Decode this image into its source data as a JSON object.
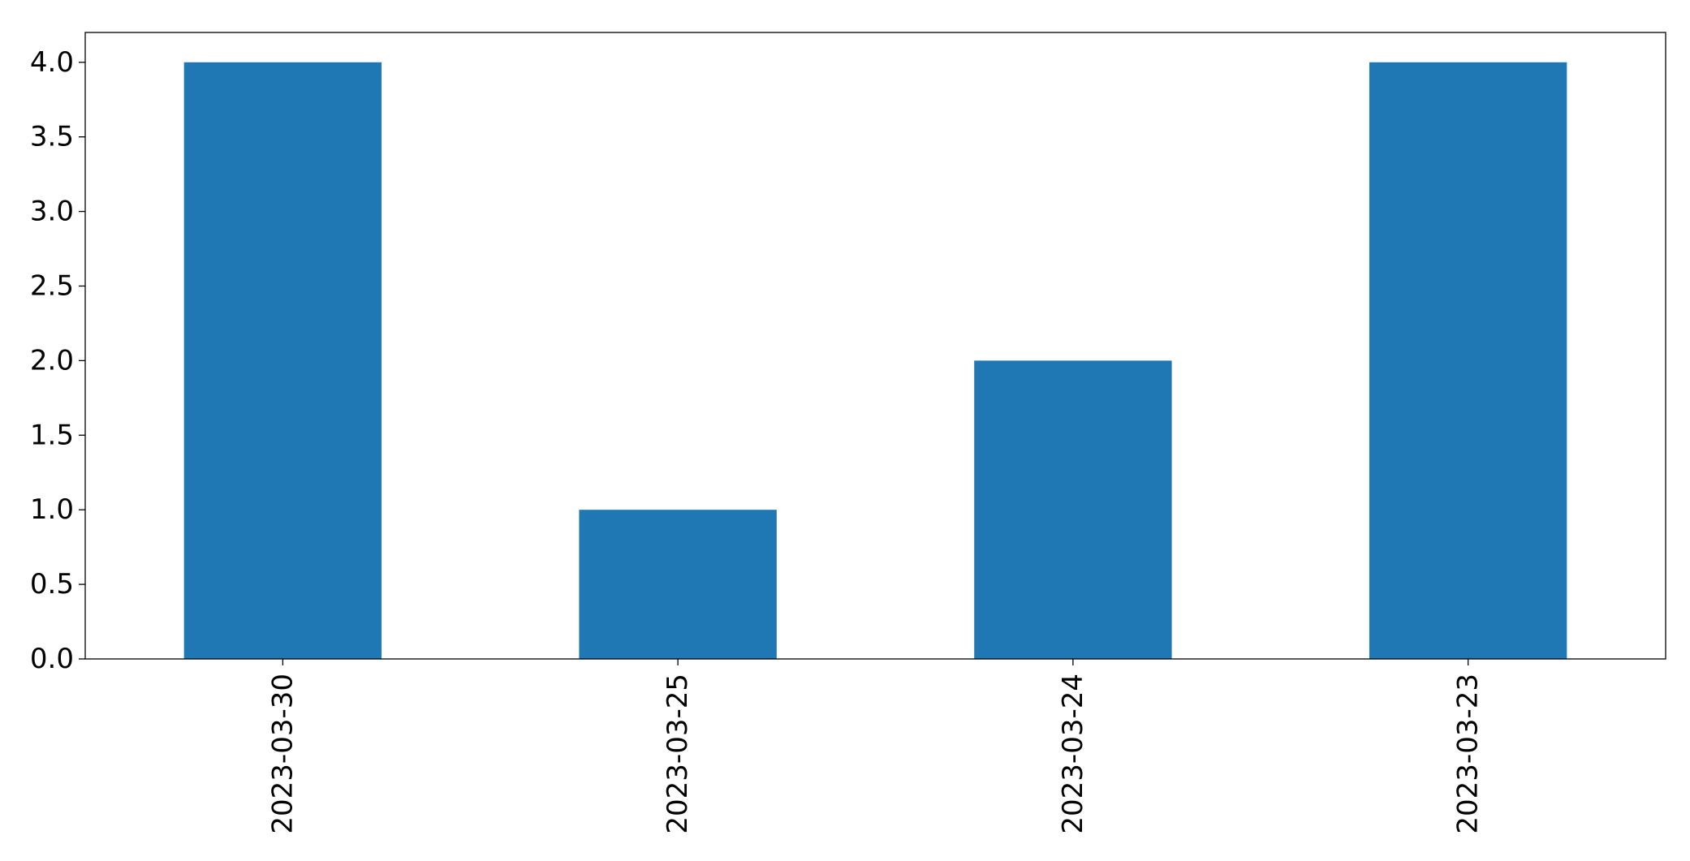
{
  "chart_data": {
    "type": "bar",
    "title": "",
    "xlabel": "",
    "ylabel": "",
    "categories": [
      "2023-03-30",
      "2023-03-25",
      "2023-03-24",
      "2023-03-23"
    ],
    "values": [
      4,
      1,
      2,
      4
    ],
    "ylim": [
      0,
      4.2
    ],
    "yticks": [
      0.0,
      0.5,
      1.0,
      1.5,
      2.0,
      2.5,
      3.0,
      3.5,
      4.0
    ],
    "ytick_labels": [
      "0.0",
      "0.5",
      "1.0",
      "1.5",
      "2.0",
      "2.5",
      "3.0",
      "3.5",
      "4.0"
    ],
    "xtick_rotation": "vertical",
    "bar_color": "#1f77b4",
    "grid": false,
    "legend": "none"
  }
}
